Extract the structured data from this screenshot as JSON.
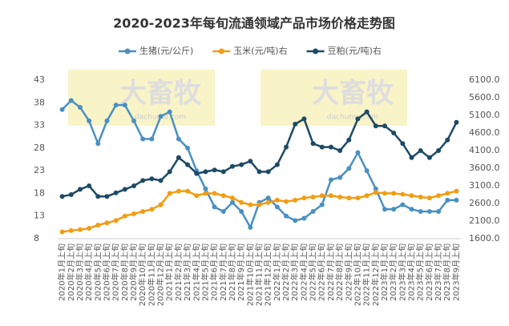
{
  "chart_data": {
    "type": "line",
    "title": "2020-2023年每旬流通领域产品市场价格走势图",
    "annotations": [
      "大畜牧",
      "dachumu.com"
    ],
    "categories": [
      "2020年1月上旬",
      "2020年2月上旬",
      "2020年3月上旬",
      "2020年4月上旬",
      "2020年5月上旬",
      "2020年6月上旬",
      "2020年7月上旬",
      "2020年8月上旬",
      "2020年9月上旬",
      "2020年10月上旬",
      "2020年11月上旬",
      "2020年12月上旬",
      "2021年1月上旬",
      "2021年2月上旬",
      "2021年3月上旬",
      "2021年4月上旬",
      "2021年5月上旬",
      "2021年6月上旬",
      "2021年7月上旬",
      "2021年8月上旬",
      "2021年9月上旬",
      "2021年10月上旬",
      "2021年11月上旬",
      "2021年12月上旬",
      "2022年1月上旬",
      "2022年2月上旬",
      "2022年3月上旬",
      "2022年4月上旬",
      "2022年5月上旬",
      "2022年6月上旬",
      "2022年7月上旬",
      "2022年8月上旬",
      "2022年9月上旬",
      "2022年10月上旬",
      "2022年11月上旬",
      "2022年12月上旬",
      "2023年1月上旬",
      "2023年2月上旬",
      "2023年3月上旬",
      "2023年4月上旬",
      "2023年5月上旬",
      "2023年6月上旬",
      "2023年7月上旬",
      "2023年8月上旬",
      "2023年9月上旬"
    ],
    "series": [
      {
        "name": "生猪(元/公斤)",
        "color": "#4a90c2",
        "axis": "y",
        "values": [
          36.5,
          38.5,
          37,
          34,
          29,
          34,
          37.5,
          37.5,
          34,
          30,
          30,
          35,
          36,
          30,
          28,
          23,
          19,
          15,
          14,
          16,
          14,
          10.5,
          16,
          17,
          15,
          13,
          12,
          12.5,
          14,
          15.5,
          21,
          21.5,
          23.5,
          27,
          23,
          19,
          14.5,
          14.5,
          15.5,
          14.5,
          14,
          14,
          14,
          16.5,
          16.5
        ]
      },
      {
        "name": "玉米(元/吨)右",
        "color": "#f39c12",
        "axis": "y",
        "values": [
          9.5,
          9.8,
          10,
          10.3,
          11,
          11.5,
          12,
          13,
          13.5,
          14,
          14.5,
          15.5,
          18,
          18.5,
          18.5,
          17.5,
          18,
          18,
          17.5,
          17,
          16,
          15.5,
          15.5,
          16,
          16.5,
          16.2,
          16.5,
          17,
          17.2,
          17.5,
          17.5,
          17.2,
          17,
          17,
          17.5,
          18.2,
          18,
          18,
          17.8,
          17.5,
          17.2,
          17,
          17.5,
          18,
          18.5
        ]
      },
      {
        "name": "豆粕(元/吨)右",
        "color": "#1d4a66",
        "axis": "y2",
        "values": [
          2800,
          2850,
          3000,
          3100,
          2800,
          2800,
          2900,
          3000,
          3100,
          3250,
          3300,
          3250,
          3500,
          3900,
          3700,
          3450,
          3500,
          3550,
          3500,
          3650,
          3700,
          3800,
          3500,
          3500,
          3700,
          4200,
          4850,
          5000,
          4300,
          4200,
          4200,
          4100,
          4400,
          5000,
          5200,
          4800,
          4800,
          4600,
          4300,
          3900,
          4100,
          3900,
          4100,
          4400,
          4900
        ]
      }
    ],
    "ylim": [
      8,
      43
    ],
    "yticks": [
      8,
      13,
      18,
      23,
      28,
      33,
      38,
      43
    ],
    "y2lim": [
      1600,
      6100
    ],
    "y2ticks": [
      {
        "value": 1600,
        "label": "1600.0"
      },
      {
        "value": 2100,
        "label": "2100.0"
      },
      {
        "value": 2600,
        "label": "2600.0"
      },
      {
        "value": 3100,
        "label": "3100.0"
      },
      {
        "value": 3600,
        "label": "3600.0"
      },
      {
        "value": 4100,
        "label": "4100.0"
      },
      {
        "value": 4600,
        "label": "4600.0"
      },
      {
        "value": 5100,
        "label": "5100.0"
      },
      {
        "value": 5600,
        "label": "5600.0"
      },
      {
        "value": 6100,
        "label": "6100.0"
      }
    ],
    "grid": false,
    "legend": "top"
  }
}
